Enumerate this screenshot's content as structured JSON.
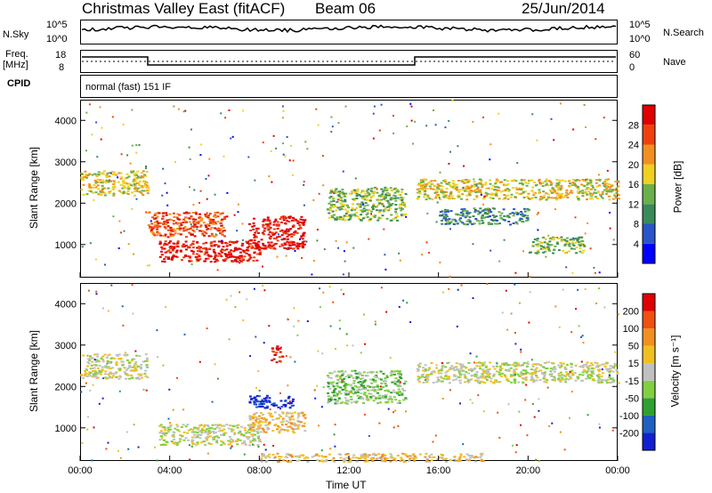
{
  "header": {
    "title": "Christmas Valley East (fitACF)",
    "beam": "Beam 06",
    "date": "25/Jun/2014"
  },
  "noise_panel": {
    "left_label": "N.Sky",
    "left_ticks": [
      "10^5",
      "10^0"
    ],
    "right_label": "N.Search",
    "right_ticks": [
      "10^5",
      "10^0"
    ]
  },
  "freq_panel": {
    "left_label_1": "Freq.",
    "left_label_2": "[MHz]",
    "left_ticks": [
      "18",
      "8"
    ],
    "right_label": "Nave",
    "right_ticks": [
      "60",
      "0"
    ]
  },
  "cpid_panel": {
    "label": "CPID",
    "text": "normal (fast) 151 IF"
  },
  "colors": {
    "power_scale": [
      "#0000ff",
      "#2a55c8",
      "#3a8a5a",
      "#6ab04a",
      "#f0d020",
      "#f09020",
      "#f04010",
      "#e00000"
    ],
    "velocity_scale": [
      "#1020d0",
      "#2060c0",
      "#30a030",
      "#80d040",
      "#c0c0c0",
      "#f0c020",
      "#f09020",
      "#f05010",
      "#e00000"
    ]
  },
  "chart_data": [
    {
      "type": "heatmap",
      "name_panel": "power",
      "ylabel": "Slant Range [km]",
      "yticks": [
        "4000",
        "3000",
        "2000",
        "1000"
      ],
      "y_values": [
        4000,
        3000,
        2000,
        1000
      ],
      "ylim": [
        200,
        4500
      ],
      "xlim": [
        0,
        24
      ],
      "colorbar_label": "Power [dB]",
      "colorbar_ticks": [
        "28",
        "24",
        "20",
        "16",
        "12",
        "8",
        "4"
      ],
      "bands": [
        {
          "t0": 0.0,
          "t1": 3.0,
          "r0": 2200,
          "r1": 2800,
          "level": 4
        },
        {
          "t0": 3.0,
          "t1": 6.5,
          "r0": 1200,
          "r1": 1800,
          "level": 6
        },
        {
          "t0": 3.5,
          "t1": 8.0,
          "r0": 600,
          "r1": 1100,
          "level": 7
        },
        {
          "t0": 7.5,
          "t1": 10.0,
          "r0": 900,
          "r1": 1700,
          "level": 7
        },
        {
          "t0": 11.0,
          "t1": 14.5,
          "r0": 1600,
          "r1": 2400,
          "level": 3
        },
        {
          "t0": 15.0,
          "t1": 24.0,
          "r0": 2100,
          "r1": 2600,
          "level": 4
        },
        {
          "t0": 16.0,
          "t1": 20.0,
          "r0": 1500,
          "r1": 1900,
          "level": 2
        },
        {
          "t0": 20.0,
          "t1": 22.5,
          "r0": 800,
          "r1": 1200,
          "level": 3
        }
      ]
    },
    {
      "type": "heatmap",
      "name_panel": "velocity",
      "ylabel": "Slant Range [km]",
      "yticks": [
        "4000",
        "3000",
        "2000",
        "1000"
      ],
      "y_values": [
        4000,
        3000,
        2000,
        1000
      ],
      "ylim": [
        200,
        4500
      ],
      "xlim": [
        0,
        24
      ],
      "xlabel": "Time UT",
      "xticks": [
        "00:00",
        "04:00",
        "08:00",
        "12:00",
        "16:00",
        "20:00",
        "00:00"
      ],
      "x_values": [
        0,
        4,
        8,
        12,
        16,
        20,
        24
      ],
      "colorbar_label": "Velocity [m s⁻¹]",
      "colorbar_ticks": [
        "200",
        "100",
        "50",
        "15",
        "-15",
        "-50",
        "-100",
        "-200"
      ],
      "bands": [
        {
          "t0": 0.0,
          "t1": 3.0,
          "r0": 2200,
          "r1": 2800,
          "level": 4
        },
        {
          "t0": 3.5,
          "t1": 8.0,
          "r0": 600,
          "r1": 1100,
          "level": 4
        },
        {
          "t0": 7.5,
          "t1": 9.5,
          "r0": 1500,
          "r1": 1800,
          "level": 0
        },
        {
          "t0": 7.5,
          "t1": 10.0,
          "r0": 900,
          "r1": 1400,
          "level": 5
        },
        {
          "t0": 8.5,
          "t1": 9.0,
          "r0": 2600,
          "r1": 3000,
          "level": 8
        },
        {
          "t0": 11.0,
          "t1": 14.5,
          "r0": 1600,
          "r1": 2400,
          "level": 3
        },
        {
          "t0": 15.0,
          "t1": 24.0,
          "r0": 2100,
          "r1": 2600,
          "level": 4
        },
        {
          "t0": 8.0,
          "t1": 18.0,
          "r0": 200,
          "r1": 400,
          "level": 5
        }
      ]
    }
  ]
}
